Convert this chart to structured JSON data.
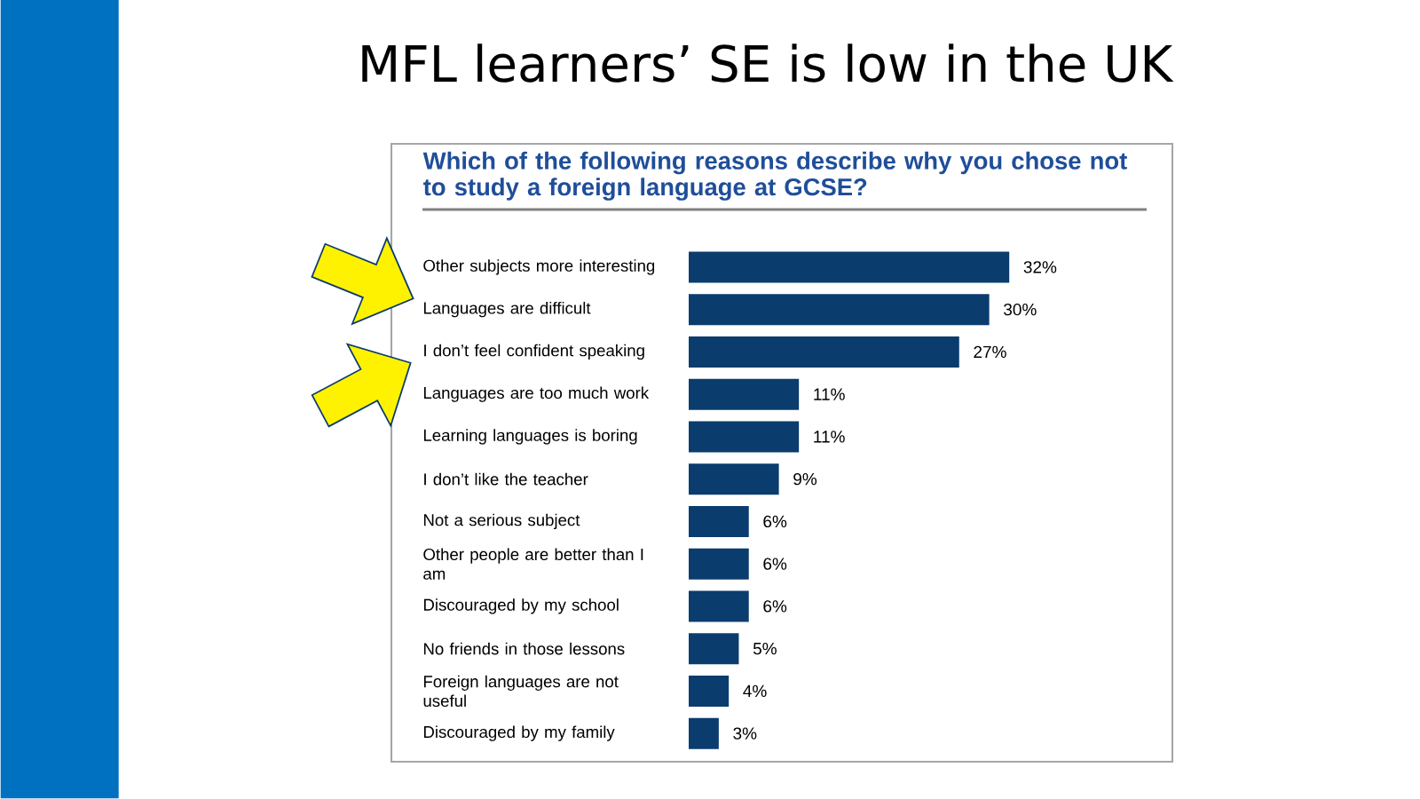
{
  "chart_data": {
    "type": "bar",
    "orientation": "horizontal",
    "title": "MFL learners’ SE is low in the UK",
    "subtitle": "Which of the following reasons describe why you chose not to study a foreign language at GCSE?",
    "categories": [
      "Other subjects more interesting",
      "Languages are difficult",
      "I don’t feel confident speaking",
      "Languages are too much work",
      "Learning languages is boring",
      "I don’t like the teacher",
      "Not a serious subject",
      "Other people are better than I am",
      "Discouraged by my school",
      "No friends in those lessons",
      "Foreign languages are not useful",
      "Discouraged by my family"
    ],
    "values": [
      32,
      30,
      27,
      11,
      11,
      9,
      6,
      6,
      6,
      5,
      4,
      3
    ],
    "value_labels": [
      "32%",
      "30%",
      "27%",
      "11%",
      "11%",
      "9%",
      "6%",
      "6%",
      "6%",
      "5%",
      "4%",
      "3%"
    ],
    "color": "#0b3c6e",
    "tick_labels": "y"
  }
}
